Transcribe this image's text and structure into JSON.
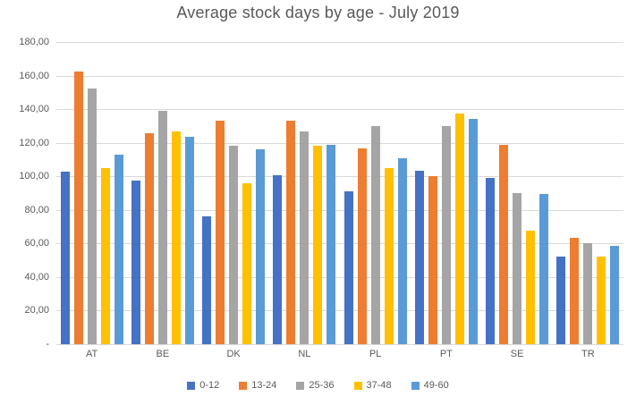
{
  "chart_data": {
    "type": "bar",
    "title": "Average stock days by age - July 2019",
    "categories": [
      "AT",
      "BE",
      "DK",
      "NL",
      "PL",
      "PT",
      "SE",
      "TR"
    ],
    "series": [
      {
        "name": "0-12",
        "color": "#4472C4",
        "values": [
          103,
          97.5,
          76,
          100.5,
          91,
          103.5,
          99,
          52
        ]
      },
      {
        "name": "13-24",
        "color": "#ED7D31",
        "values": [
          162.5,
          125.5,
          133,
          133,
          116.5,
          100,
          118.5,
          63.5
        ]
      },
      {
        "name": "25-36",
        "color": "#A5A5A5",
        "values": [
          152.5,
          139,
          118,
          127,
          130,
          130,
          90,
          60
        ]
      },
      {
        "name": "37-48",
        "color": "#FFC000",
        "values": [
          105,
          126.5,
          96,
          118,
          105,
          137.5,
          67.5,
          52
        ]
      },
      {
        "name": "49-60",
        "color": "#5B9BD5",
        "values": [
          113,
          123.5,
          116,
          119,
          111,
          134,
          89.5,
          58.5
        ]
      }
    ],
    "ylim": [
      0,
      180
    ],
    "ytick_step": 20,
    "ytick_labels": [
      "180,00",
      "160,00",
      "140,00",
      "120,00",
      "100,00",
      "80,00",
      "60,00",
      "40,00",
      "20,00",
      "-"
    ],
    "grid": true,
    "legend_position": "bottom",
    "gridline_color": "#d9d9d9",
    "text_color": "#595959"
  }
}
